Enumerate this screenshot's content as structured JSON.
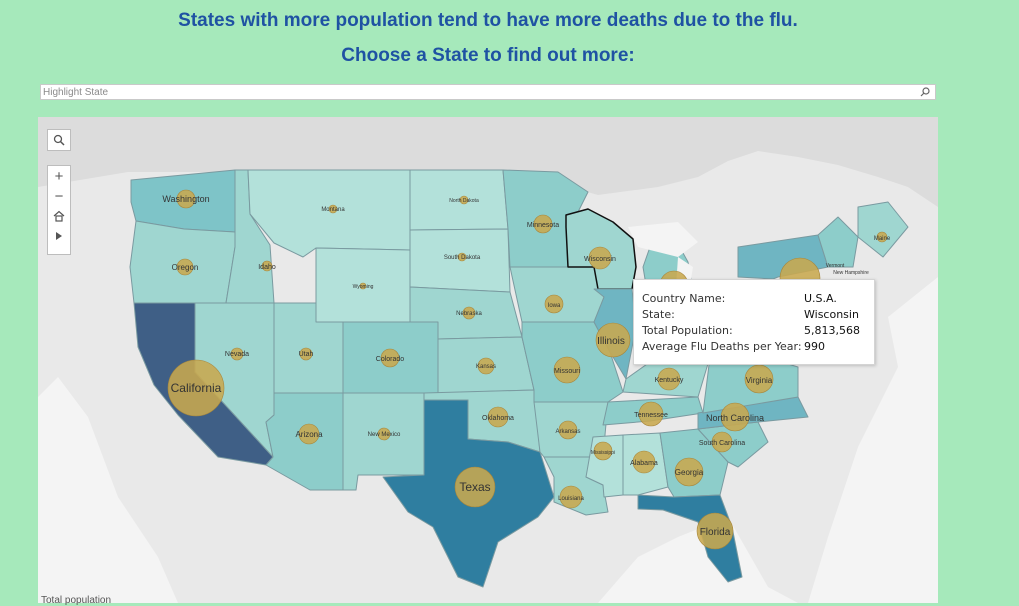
{
  "header": {
    "line1": "States with more population tend to have more deaths due to the flu.",
    "line2": "Choose a State to find out more:"
  },
  "search": {
    "placeholder": "Highlight State",
    "icon": "search-icon"
  },
  "map_tools": {
    "search_icon": "search-icon",
    "zoom_in": "+",
    "zoom_out": "−",
    "home_icon": "home-icon",
    "pan_icon": "play-arrow-icon"
  },
  "states": {
    "washington": "Washington",
    "oregon": "Oregon",
    "california": "California",
    "nevada": "Nevada",
    "idaho": "Idaho",
    "montana": "Montana",
    "wyoming": "Wyoming",
    "utah": "Utah",
    "arizona": "Arizona",
    "colorado": "Colorado",
    "new_mexico": "New Mexico",
    "north_dakota": "North Dakota",
    "south_dakota": "South Dakota",
    "nebraska": "Nebraska",
    "kansas": "Kansas",
    "oklahoma": "Oklahoma",
    "texas": "Texas",
    "minnesota": "Minnesota",
    "iowa": "Iowa",
    "missouri": "Missouri",
    "arkansas": "Arkansas",
    "louisiana": "Louisiana",
    "wisconsin": "Wisconsin",
    "illinois": "Illinois",
    "mississippi": "Mississippi",
    "alabama": "Alabama",
    "tennessee": "Tennessee",
    "kentucky": "Kentucky",
    "georgia": "Georgia",
    "florida": "Florida",
    "south_carolina": "South Carolina",
    "north_carolina": "North Carolina",
    "virginia": "Virginia",
    "maine": "Maine",
    "vermont": "Vermont",
    "new_hampshire": "New Hampshire"
  },
  "tooltip": {
    "country_label": "Country Name:",
    "country_value": "U.S.A.",
    "state_label": "State:",
    "state_value": "Wisconsin",
    "population_label": "Total Population:",
    "population_value": "5,813,568",
    "deaths_label": "Average Flu Deaths per Year:",
    "deaths_value": "990"
  },
  "footer": {
    "label": "Total population"
  },
  "colors": {
    "background": "#a6e9bb",
    "title_blue": "#1f52a3",
    "state_light": "#9fd6d0",
    "state_mid": "#6fb5c2",
    "state_dark": "#2f7ea0",
    "state_darkest": "#3f5f86",
    "bubble": "#c8a84e"
  }
}
